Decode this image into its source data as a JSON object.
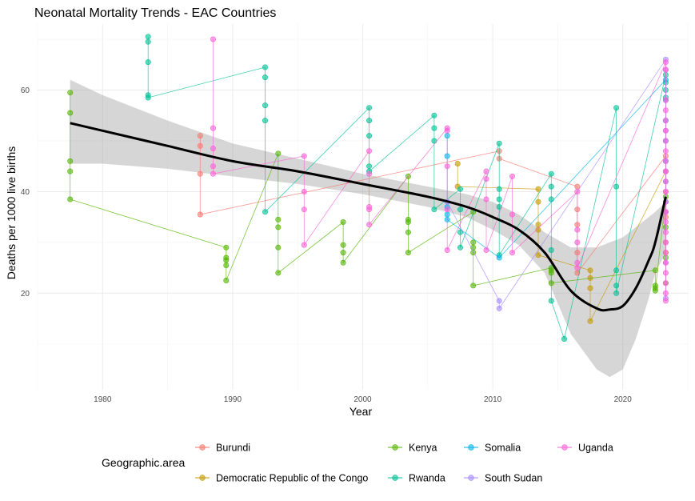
{
  "chart_data": {
    "type": "scatter",
    "title": "Neonatal Mortality Trends - EAC Countries",
    "xlabel": "Year",
    "ylabel": "Deaths per 1000 live births",
    "xlim": [
      1975,
      2025
    ],
    "ylim": [
      1,
      73
    ],
    "x_ticks": [
      1980,
      1990,
      2000,
      2010,
      2020
    ],
    "y_ticks": [
      20,
      40,
      60
    ],
    "grid": true,
    "legend_position": "bottom",
    "legend_title": "Geographic.area",
    "point_alpha": 0.6,
    "series": [
      {
        "name": "Burundi",
        "color": "#F8766D",
        "points": [
          [
            1987.5,
            51
          ],
          [
            1987.5,
            49
          ],
          [
            1987.5,
            43.5
          ],
          [
            1987.5,
            35.5
          ],
          [
            2010.5,
            48
          ],
          [
            2010.5,
            46.5
          ],
          [
            2016.5,
            41
          ],
          [
            2016.5,
            36.5
          ],
          [
            2016.5,
            33.5
          ],
          [
            2016.5,
            28
          ],
          [
            2016.5,
            24
          ],
          [
            2023.3,
            47
          ],
          [
            2023.3,
            40
          ],
          [
            2023.3,
            35
          ],
          [
            2023.3,
            30
          ]
        ]
      },
      {
        "name": "Democratic Republic of the Congo",
        "color": "#C49A00",
        "points": [
          [
            2007.3,
            45.5
          ],
          [
            2007.3,
            41
          ],
          [
            2013.5,
            40.5
          ],
          [
            2013.5,
            38
          ],
          [
            2013.5,
            33.5
          ],
          [
            2013.5,
            32.5
          ],
          [
            2013.5,
            27.5
          ],
          [
            2017.5,
            24.5
          ],
          [
            2017.5,
            23
          ],
          [
            2017.5,
            21
          ],
          [
            2017.5,
            14.5
          ],
          [
            2023.3,
            44
          ],
          [
            2023.3,
            36
          ],
          [
            2023.3,
            28
          ]
        ]
      },
      {
        "name": "Kenya",
        "color": "#53B400",
        "points": [
          [
            1977.5,
            59.5
          ],
          [
            1977.5,
            55.5
          ],
          [
            1977.5,
            46
          ],
          [
            1977.5,
            44
          ],
          [
            1977.5,
            38.5
          ],
          [
            1989.5,
            29
          ],
          [
            1989.5,
            27
          ],
          [
            1989.5,
            26.5
          ],
          [
            1989.5,
            25.5
          ],
          [
            1989.5,
            22.5
          ],
          [
            1993.5,
            47.5
          ],
          [
            1993.5,
            34.5
          ],
          [
            1993.5,
            33
          ],
          [
            1993.5,
            29
          ],
          [
            1993.5,
            24
          ],
          [
            1998.5,
            34
          ],
          [
            1998.5,
            29.5
          ],
          [
            1998.5,
            28
          ],
          [
            1998.5,
            26
          ],
          [
            2003.5,
            43
          ],
          [
            2003.5,
            34.5
          ],
          [
            2003.5,
            34
          ],
          [
            2003.5,
            32
          ],
          [
            2003.5,
            28
          ],
          [
            2008.5,
            36
          ],
          [
            2008.5,
            30
          ],
          [
            2008.5,
            29
          ],
          [
            2008.5,
            28
          ],
          [
            2008.5,
            21.5
          ],
          [
            2014.5,
            25
          ],
          [
            2014.5,
            24.5
          ],
          [
            2014.5,
            24
          ],
          [
            2014.5,
            22
          ],
          [
            2022.5,
            24.5
          ],
          [
            2022.5,
            21.5
          ],
          [
            2022.5,
            21
          ],
          [
            2022.5,
            20.5
          ],
          [
            2023.3,
            39
          ],
          [
            2023.3,
            33
          ],
          [
            2023.3,
            27
          ],
          [
            2023.3,
            22
          ]
        ]
      },
      {
        "name": "Rwanda",
        "color": "#00C094",
        "points": [
          [
            1983.5,
            70.5
          ],
          [
            1983.5,
            69.5
          ],
          [
            1983.5,
            65.5
          ],
          [
            1983.5,
            59
          ],
          [
            1983.5,
            58.5
          ],
          [
            1992.5,
            64.5
          ],
          [
            1992.5,
            62.5
          ],
          [
            1992.5,
            57
          ],
          [
            1992.5,
            54
          ],
          [
            1992.5,
            36
          ],
          [
            2000.5,
            56.5
          ],
          [
            2000.5,
            54
          ],
          [
            2000.5,
            51
          ],
          [
            2000.5,
            45
          ],
          [
            2000.5,
            44
          ],
          [
            2005.5,
            55
          ],
          [
            2005.5,
            52.5
          ],
          [
            2005.5,
            50
          ],
          [
            2005.5,
            36.5
          ],
          [
            2007.5,
            40.5
          ],
          [
            2007.5,
            36.5
          ],
          [
            2007.5,
            32
          ],
          [
            2007.5,
            29
          ],
          [
            2010.5,
            49.5
          ],
          [
            2010.5,
            40.5
          ],
          [
            2010.5,
            38.5
          ],
          [
            2010.5,
            37
          ],
          [
            2010.5,
            27.5
          ],
          [
            2014.5,
            43.5
          ],
          [
            2014.5,
            41
          ],
          [
            2014.5,
            38.5
          ],
          [
            2014.5,
            28.5
          ],
          [
            2014.5,
            18.5
          ],
          [
            2015.5,
            11
          ],
          [
            2019.5,
            56.5
          ],
          [
            2019.5,
            41
          ],
          [
            2019.5,
            24.5
          ],
          [
            2019.5,
            21.5
          ],
          [
            2019.5,
            20
          ],
          [
            2023.3,
            63
          ],
          [
            2023.3,
            61.5
          ],
          [
            2023.3,
            60
          ],
          [
            2023.3,
            58.5
          ]
        ]
      },
      {
        "name": "Somalia",
        "color": "#00B6EB",
        "points": [
          [
            2006.5,
            51
          ],
          [
            2006.5,
            47
          ],
          [
            2006.5,
            37
          ],
          [
            2006.5,
            35.5
          ],
          [
            2006.5,
            34.5
          ],
          [
            2010.5,
            27
          ],
          [
            2023.3,
            62
          ],
          [
            2023.3,
            58
          ],
          [
            2023.3,
            54
          ],
          [
            2023.3,
            50
          ],
          [
            2023.3,
            46
          ],
          [
            2023.3,
            42
          ],
          [
            2023.3,
            38
          ]
        ]
      },
      {
        "name": "South Sudan",
        "color": "#A58AFF",
        "points": [
          [
            2006.5,
            38
          ],
          [
            2010.5,
            18.5
          ],
          [
            2010.5,
            17
          ],
          [
            2023.3,
            66
          ],
          [
            2023.3,
            64
          ],
          [
            2023.3,
            52
          ],
          [
            2023.3,
            44
          ],
          [
            2023.3,
            36
          ],
          [
            2023.3,
            26
          ],
          [
            2023.3,
            19
          ]
        ]
      },
      {
        "name": "Uganda",
        "color": "#FB61D7",
        "points": [
          [
            1988.5,
            70
          ],
          [
            1988.5,
            52.5
          ],
          [
            1988.5,
            48.5
          ],
          [
            1988.5,
            45
          ],
          [
            1988.5,
            43.5
          ],
          [
            1995.5,
            47
          ],
          [
            1995.5,
            40
          ],
          [
            1995.5,
            36.5
          ],
          [
            1995.5,
            29.5
          ],
          [
            2000.5,
            48
          ],
          [
            2000.5,
            43.5
          ],
          [
            2000.5,
            37
          ],
          [
            2000.5,
            36.5
          ],
          [
            2000.5,
            33.5
          ],
          [
            2006.5,
            52.5
          ],
          [
            2006.5,
            52
          ],
          [
            2006.5,
            45
          ],
          [
            2006.5,
            36.5
          ],
          [
            2006.5,
            28.5
          ],
          [
            2009.5,
            44
          ],
          [
            2009.5,
            42.5
          ],
          [
            2009.5,
            38.5
          ],
          [
            2009.5,
            28.5
          ],
          [
            2011.5,
            43
          ],
          [
            2011.5,
            35.5
          ],
          [
            2011.5,
            28
          ],
          [
            2016.5,
            40
          ],
          [
            2016.5,
            32.5
          ],
          [
            2016.5,
            30
          ],
          [
            2016.5,
            26
          ],
          [
            2016.5,
            25
          ],
          [
            2023.3,
            65.5
          ],
          [
            2023.3,
            64
          ],
          [
            2023.3,
            58
          ],
          [
            2023.3,
            56
          ],
          [
            2023.3,
            54
          ],
          [
            2023.3,
            52
          ],
          [
            2023.3,
            50
          ],
          [
            2023.3,
            48
          ],
          [
            2023.3,
            46
          ],
          [
            2023.3,
            44
          ],
          [
            2023.3,
            42
          ],
          [
            2023.3,
            40
          ],
          [
            2023.3,
            38
          ],
          [
            2023.3,
            36
          ],
          [
            2023.3,
            34
          ],
          [
            2023.3,
            32
          ],
          [
            2023.3,
            30
          ],
          [
            2023.3,
            28
          ],
          [
            2023.3,
            26
          ],
          [
            2023.3,
            24
          ],
          [
            2023.3,
            22
          ],
          [
            2023.3,
            20
          ],
          [
            2023.3,
            18.5
          ]
        ]
      }
    ],
    "trend_line": {
      "type": "smooth",
      "color": "#000000",
      "x": [
        1977.5,
        1980,
        1985,
        1990,
        1995,
        2000,
        2005,
        2008,
        2010,
        2012,
        2014,
        2016,
        2018,
        2019,
        2020,
        2021,
        2022,
        2022.5,
        2023.3
      ],
      "y": [
        53.5,
        52,
        49,
        46,
        44,
        41.5,
        39,
        37,
        35,
        32.5,
        28,
        20.5,
        17,
        16.8,
        17.5,
        21,
        26.5,
        30,
        39
      ],
      "ci_lower": [
        45.5,
        45.5,
        44.5,
        43,
        41.5,
        39.5,
        37,
        35,
        32.5,
        29.5,
        24,
        12,
        5,
        3.5,
        5,
        11,
        19,
        24,
        28
      ],
      "ci_upper": [
        62,
        59,
        54,
        49.5,
        46.5,
        43.5,
        41,
        39.5,
        38,
        35.5,
        32,
        29,
        29,
        30,
        31,
        33,
        35,
        36,
        38
      ]
    }
  }
}
